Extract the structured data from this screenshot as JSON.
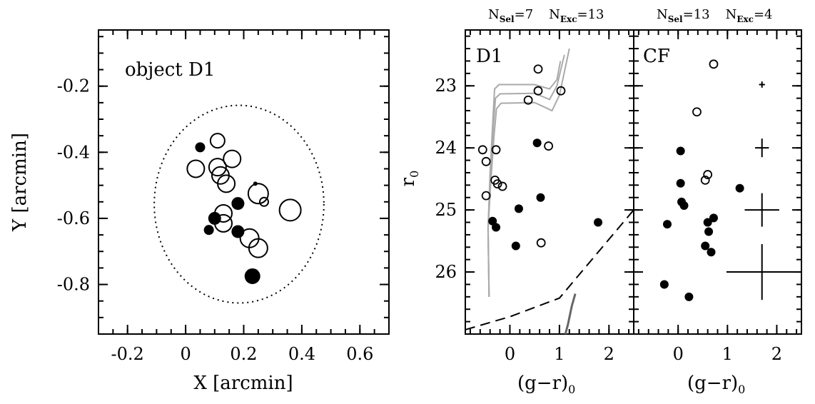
{
  "chart_data": [
    {
      "type": "scatter",
      "panel_label": "object D1",
      "xlabel": "X [arcmin]",
      "ylabel": "Y [arcmin]",
      "xlim": [
        -0.3,
        0.7
      ],
      "ylim": [
        -0.95,
        -0.03
      ],
      "xticks": [
        -0.2,
        0,
        0.2,
        0.4,
        0.6
      ],
      "xticklabels": [
        "-0.2",
        "0",
        "0.2",
        "0.4",
        "0.6"
      ],
      "yticks": [
        -0.2,
        -0.4,
        -0.6,
        -0.8
      ],
      "yticklabels": [
        "-0.2",
        "-0.4",
        "-0.6",
        "-0.8"
      ],
      "selection_ellipse": {
        "cx": 0.184,
        "cy": -0.557,
        "rx": 0.292,
        "ry": 0.299,
        "style": "dotted"
      },
      "filled_points": [
        {
          "x": 0.05,
          "y": -0.385,
          "size": 7
        },
        {
          "x": 0.18,
          "y": -0.555,
          "size": 9
        },
        {
          "x": 0.1,
          "y": -0.6,
          "size": 9
        },
        {
          "x": 0.08,
          "y": -0.635,
          "size": 7
        },
        {
          "x": 0.18,
          "y": -0.64,
          "size": 9
        },
        {
          "x": 0.23,
          "y": -0.775,
          "size": 11
        },
        {
          "x": 0.24,
          "y": -0.495,
          "size": 3
        }
      ],
      "open_points": [
        {
          "x": 0.11,
          "y": -0.365,
          "size": 10
        },
        {
          "x": 0.16,
          "y": -0.42,
          "size": 12
        },
        {
          "x": 0.035,
          "y": -0.45,
          "size": 12
        },
        {
          "x": 0.11,
          "y": -0.445,
          "size": 12
        },
        {
          "x": 0.12,
          "y": -0.47,
          "size": 12
        },
        {
          "x": 0.14,
          "y": -0.495,
          "size": 12
        },
        {
          "x": 0.25,
          "y": -0.525,
          "size": 14
        },
        {
          "x": 0.27,
          "y": -0.55,
          "size": 6
        },
        {
          "x": 0.36,
          "y": -0.575,
          "size": 15
        },
        {
          "x": 0.13,
          "y": -0.585,
          "size": 12
        },
        {
          "x": 0.13,
          "y": -0.615,
          "size": 12
        },
        {
          "x": 0.22,
          "y": -0.66,
          "size": 13
        },
        {
          "x": 0.25,
          "y": -0.69,
          "size": 13
        }
      ]
    },
    {
      "type": "scatter",
      "panel_label": "D1",
      "header": {
        "n_sel": "N",
        "sel_sub": "Sel",
        "sel_val": "=7",
        "n_exc": "N",
        "exc_sub": "Exc",
        "exc_val": "=13"
      },
      "xlabel_main": "(g−r)",
      "xlabel_sub": "0",
      "ylabel_main": "r",
      "ylabel_sub": "0",
      "xlim": [
        -0.9,
        2.5
      ],
      "ylim": [
        22.1,
        27.0
      ],
      "y_inverted": true,
      "xticks": [
        0,
        1,
        2
      ],
      "xticklabels": [
        "0",
        "1",
        "2"
      ],
      "yticks": [
        23,
        24,
        25,
        26
      ],
      "yticklabels": [
        "23",
        "24",
        "25",
        "26"
      ],
      "filled_points": [
        {
          "x": 0.55,
          "y": 23.92
        },
        {
          "x": 0.62,
          "y": 24.8
        },
        {
          "x": 0.18,
          "y": 24.98
        },
        {
          "x": -0.35,
          "y": 25.18
        },
        {
          "x": -0.28,
          "y": 25.28
        },
        {
          "x": 0.12,
          "y": 25.58
        },
        {
          "x": 1.78,
          "y": 25.2
        }
      ],
      "open_points": [
        {
          "x": 0.57,
          "y": 22.73
        },
        {
          "x": 0.57,
          "y": 23.08
        },
        {
          "x": 1.03,
          "y": 23.08
        },
        {
          "x": 0.37,
          "y": 23.23
        },
        {
          "x": 0.78,
          "y": 23.97
        },
        {
          "x": -0.55,
          "y": 24.03
        },
        {
          "x": -0.28,
          "y": 24.03
        },
        {
          "x": -0.48,
          "y": 24.22
        },
        {
          "x": -0.3,
          "y": 24.52
        },
        {
          "x": -0.25,
          "y": 24.58
        },
        {
          "x": -0.15,
          "y": 24.62
        },
        {
          "x": -0.48,
          "y": 24.77
        },
        {
          "x": 0.63,
          "y": 25.53
        }
      ],
      "isochrones": [
        [
          [
            -0.42,
            26.4
          ],
          [
            -0.44,
            25.3
          ],
          [
            -0.4,
            24.4
          ],
          [
            -0.34,
            23.5
          ],
          [
            -0.31,
            23.05
          ],
          [
            -0.22,
            22.98
          ],
          [
            0.5,
            22.98
          ],
          [
            0.8,
            23.05
          ],
          [
            0.95,
            22.9
          ],
          [
            1.02,
            22.6
          ]
        ],
        [
          [
            -0.42,
            26.4
          ],
          [
            -0.44,
            25.3
          ],
          [
            -0.4,
            24.5
          ],
          [
            -0.33,
            23.6
          ],
          [
            -0.29,
            23.2
          ],
          [
            -0.2,
            23.13
          ],
          [
            0.5,
            23.12
          ],
          [
            0.8,
            23.22
          ],
          [
            0.95,
            23.0
          ],
          [
            1.1,
            22.5
          ]
        ],
        [
          [
            -0.42,
            26.4
          ],
          [
            -0.44,
            25.3
          ],
          [
            -0.39,
            24.6
          ],
          [
            -0.32,
            23.8
          ],
          [
            -0.27,
            23.37
          ],
          [
            -0.18,
            23.28
          ],
          [
            0.5,
            23.27
          ],
          [
            0.85,
            23.4
          ],
          [
            1.0,
            23.15
          ],
          [
            1.2,
            22.4
          ]
        ]
      ],
      "rgb_segment": [
        [
          1.12,
          27.0
        ],
        [
          1.17,
          26.85
        ],
        [
          1.25,
          26.55
        ],
        [
          1.32,
          26.35
        ]
      ],
      "completeness_line": [
        [
          -0.9,
          26.93
        ],
        [
          0.0,
          26.72
        ],
        [
          1.0,
          26.42
        ],
        [
          2.5,
          25.0
        ]
      ]
    },
    {
      "type": "scatter",
      "panel_label": "CF",
      "header": {
        "n_sel": "N",
        "sel_sub": "Sel",
        "sel_val": "=13",
        "n_exc": "N",
        "exc_sub": "Exc",
        "exc_val": "=4"
      },
      "xlabel_main": "(g−r)",
      "xlabel_sub": "0",
      "xlim": [
        -0.9,
        2.5
      ],
      "ylim": [
        22.1,
        27.0
      ],
      "y_inverted": true,
      "xticks": [
        0,
        1,
        2
      ],
      "xticklabels": [
        "0",
        "1",
        "2"
      ],
      "filled_points": [
        {
          "x": 0.05,
          "y": 24.05
        },
        {
          "x": 0.05,
          "y": 24.57
        },
        {
          "x": 1.25,
          "y": 24.65
        },
        {
          "x": 0.07,
          "y": 24.87
        },
        {
          "x": 0.12,
          "y": 24.93
        },
        {
          "x": 0.72,
          "y": 25.13
        },
        {
          "x": 0.6,
          "y": 25.2
        },
        {
          "x": -0.22,
          "y": 25.23
        },
        {
          "x": 0.62,
          "y": 25.35
        },
        {
          "x": 0.55,
          "y": 25.58
        },
        {
          "x": 0.67,
          "y": 25.68
        },
        {
          "x": -0.28,
          "y": 26.2
        },
        {
          "x": 0.22,
          "y": 26.4
        }
      ],
      "open_points": [
        {
          "x": 0.72,
          "y": 22.65
        },
        {
          "x": 0.38,
          "y": 23.42
        },
        {
          "x": 0.6,
          "y": 24.43
        },
        {
          "x": 0.55,
          "y": 24.52
        }
      ],
      "error_bars": [
        {
          "x": 1.7,
          "y": 22.98,
          "xerr": 0.06,
          "yerr": 0.05
        },
        {
          "x": 1.7,
          "y": 24.0,
          "xerr": 0.14,
          "yerr": 0.15
        },
        {
          "x": 1.7,
          "y": 25.0,
          "xerr": 0.35,
          "yerr": 0.27
        },
        {
          "x": 1.7,
          "y": 26.0,
          "xerr": 0.72,
          "yerr": 0.45
        }
      ]
    }
  ]
}
